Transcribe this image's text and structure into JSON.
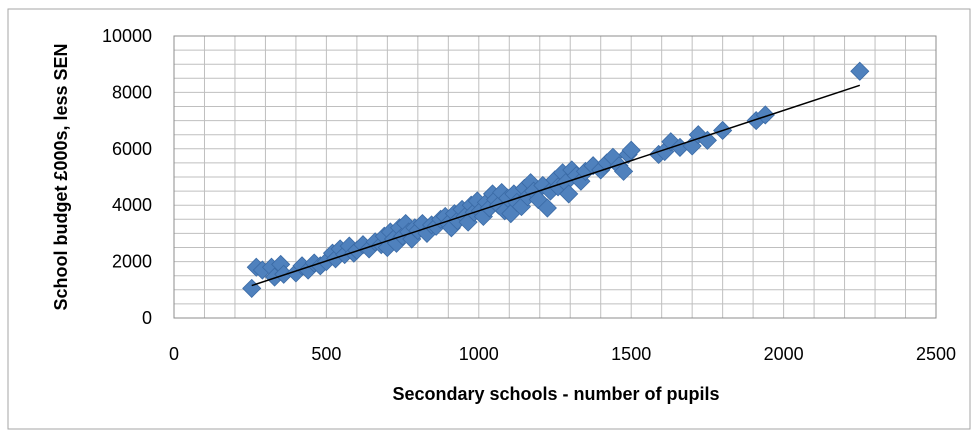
{
  "chart_data": {
    "type": "scatter",
    "title": "",
    "xlabel": "Secondary schools - number of pupils",
    "ylabel": "School budget £000s, less SEN",
    "xlim": [
      0,
      2500
    ],
    "ylim": [
      0,
      10000
    ],
    "x_ticks": [
      0,
      500,
      1000,
      1500,
      2000,
      2500
    ],
    "y_ticks": [
      0,
      2000,
      4000,
      6000,
      8000,
      10000
    ],
    "x_tick_labels": [
      "0",
      "500",
      "1000",
      "1500",
      "2000",
      "2500"
    ],
    "y_tick_labels": [
      "0",
      "2000",
      "4000",
      "6000",
      "8000",
      "10000"
    ],
    "grid": true,
    "legend": "none",
    "marker": "diamond",
    "colors": {
      "marker": "#4f81bd",
      "marker_edge": "#3a6aa5",
      "trendline": "#000000",
      "grid": "#bfbfbf",
      "border": "#a6a6a6"
    },
    "series": [
      {
        "points": [
          [
            255,
            1050
          ],
          [
            270,
            1800
          ],
          [
            290,
            1700
          ],
          [
            320,
            1800
          ],
          [
            330,
            1450
          ],
          [
            350,
            1900
          ],
          [
            360,
            1550
          ],
          [
            400,
            1600
          ],
          [
            420,
            1850
          ],
          [
            440,
            1700
          ],
          [
            460,
            1950
          ],
          [
            480,
            1850
          ],
          [
            500,
            2000
          ],
          [
            520,
            2300
          ],
          [
            530,
            2100
          ],
          [
            545,
            2450
          ],
          [
            560,
            2250
          ],
          [
            575,
            2550
          ],
          [
            590,
            2300
          ],
          [
            600,
            2400
          ],
          [
            620,
            2600
          ],
          [
            640,
            2450
          ],
          [
            660,
            2700
          ],
          [
            680,
            2600
          ],
          [
            690,
            2900
          ],
          [
            700,
            2500
          ],
          [
            710,
            3050
          ],
          [
            720,
            2800
          ],
          [
            730,
            2650
          ],
          [
            740,
            3200
          ],
          [
            750,
            2900
          ],
          [
            760,
            3350
          ],
          [
            770,
            3050
          ],
          [
            780,
            2800
          ],
          [
            790,
            3200
          ],
          [
            800,
            3100
          ],
          [
            815,
            3350
          ],
          [
            830,
            3000
          ],
          [
            845,
            3300
          ],
          [
            860,
            3250
          ],
          [
            875,
            3500
          ],
          [
            890,
            3600
          ],
          [
            900,
            3350
          ],
          [
            910,
            3200
          ],
          [
            920,
            3700
          ],
          [
            930,
            3450
          ],
          [
            945,
            3850
          ],
          [
            955,
            3600
          ],
          [
            965,
            3400
          ],
          [
            975,
            4000
          ],
          [
            985,
            3750
          ],
          [
            995,
            4150
          ],
          [
            1005,
            3800
          ],
          [
            1015,
            3600
          ],
          [
            1025,
            4100
          ],
          [
            1035,
            3900
          ],
          [
            1045,
            4400
          ],
          [
            1055,
            4200
          ],
          [
            1065,
            4000
          ],
          [
            1075,
            4450
          ],
          [
            1085,
            3800
          ],
          [
            1095,
            4250
          ],
          [
            1105,
            3700
          ],
          [
            1115,
            4400
          ],
          [
            1125,
            4100
          ],
          [
            1140,
            3950
          ],
          [
            1150,
            4600
          ],
          [
            1160,
            4300
          ],
          [
            1170,
            4800
          ],
          [
            1180,
            4500
          ],
          [
            1195,
            4200
          ],
          [
            1210,
            4700
          ],
          [
            1225,
            3900
          ],
          [
            1235,
            4500
          ],
          [
            1250,
            4900
          ],
          [
            1260,
            4650
          ],
          [
            1275,
            5150
          ],
          [
            1285,
            4800
          ],
          [
            1295,
            4400
          ],
          [
            1305,
            5250
          ],
          [
            1320,
            5050
          ],
          [
            1335,
            4850
          ],
          [
            1350,
            5200
          ],
          [
            1375,
            5400
          ],
          [
            1400,
            5250
          ],
          [
            1420,
            5500
          ],
          [
            1440,
            5700
          ],
          [
            1460,
            5400
          ],
          [
            1475,
            5200
          ],
          [
            1490,
            5800
          ],
          [
            1500,
            5950
          ],
          [
            1590,
            5800
          ],
          [
            1610,
            5900
          ],
          [
            1630,
            6250
          ],
          [
            1660,
            6050
          ],
          [
            1700,
            6100
          ],
          [
            1720,
            6500
          ],
          [
            1750,
            6300
          ],
          [
            1800,
            6650
          ],
          [
            1910,
            7000
          ],
          [
            1940,
            7200
          ],
          [
            2250,
            8750
          ]
        ]
      }
    ],
    "trendline": {
      "type": "linear",
      "x_range": [
        255,
        2250
      ],
      "y_range": [
        1150,
        8250
      ]
    }
  }
}
